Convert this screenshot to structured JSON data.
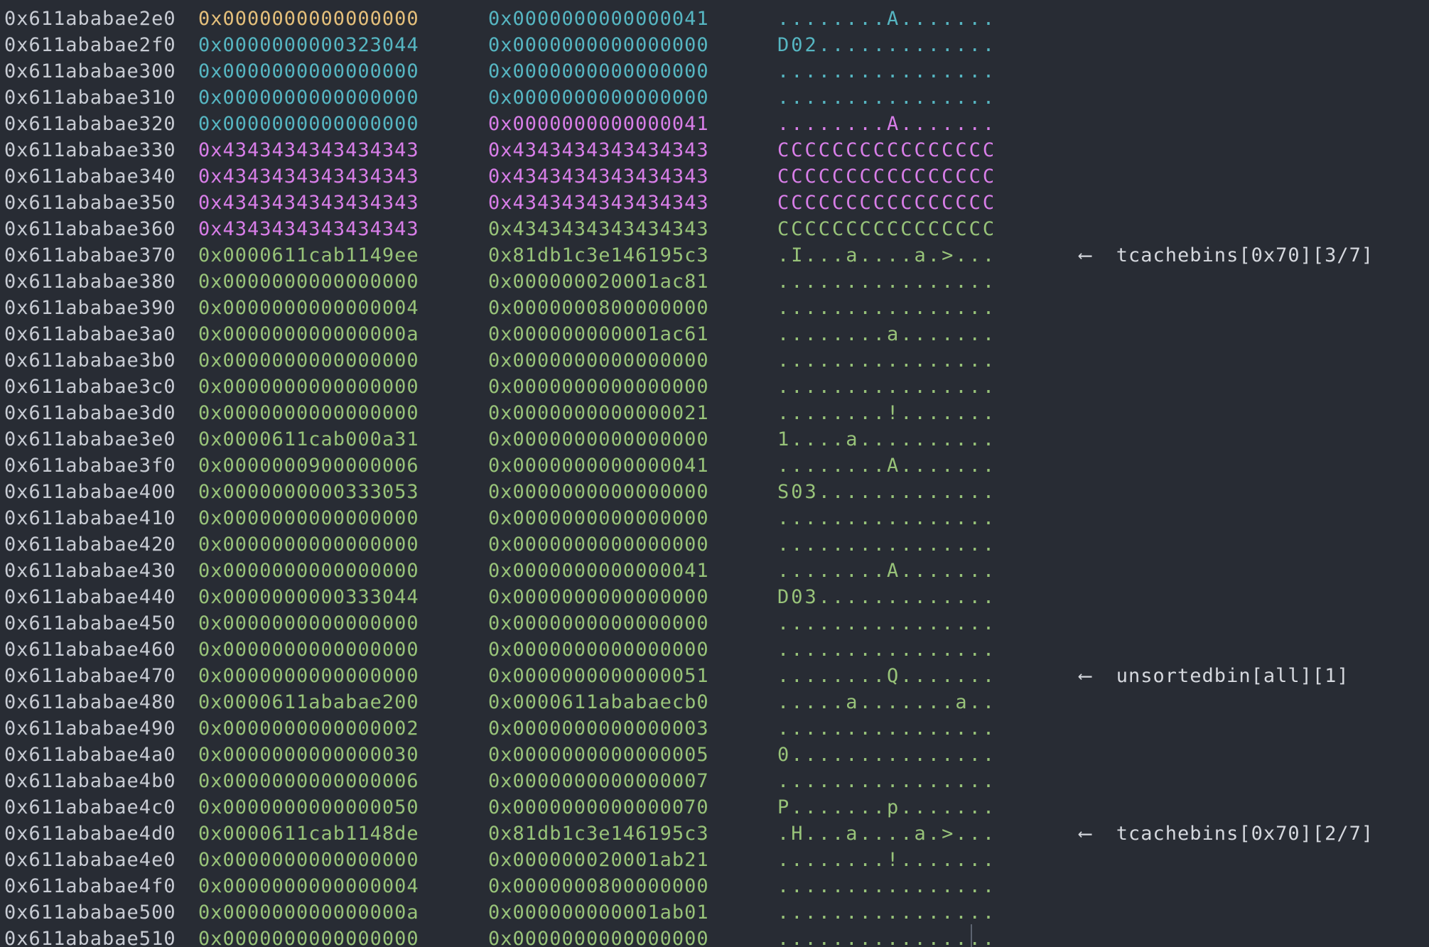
{
  "colors": {
    "background": "#282c34",
    "address": "#c8ccd4",
    "orange": "#e5c07b",
    "cyan": "#56b6c2",
    "magenta": "#d87ee8",
    "green": "#98c379",
    "annotation": "#d5d8de"
  },
  "rows": [
    {
      "addr": "0x611ababae2e0",
      "q1": "0x0000000000000000",
      "q1c": "orange",
      "q2": "0x0000000000000041",
      "q2c": "cyan",
      "ascii": "........A.......",
      "ac": "cyan",
      "note": ""
    },
    {
      "addr": "0x611ababae2f0",
      "q1": "0x0000000000323044",
      "q1c": "cyan",
      "q2": "0x0000000000000000",
      "q2c": "cyan",
      "ascii": "D02.............",
      "ac": "cyan",
      "note": ""
    },
    {
      "addr": "0x611ababae300",
      "q1": "0x0000000000000000",
      "q1c": "cyan",
      "q2": "0x0000000000000000",
      "q2c": "cyan",
      "ascii": "................",
      "ac": "cyan",
      "note": ""
    },
    {
      "addr": "0x611ababae310",
      "q1": "0x0000000000000000",
      "q1c": "cyan",
      "q2": "0x0000000000000000",
      "q2c": "cyan",
      "ascii": "................",
      "ac": "cyan",
      "note": ""
    },
    {
      "addr": "0x611ababae320",
      "q1": "0x0000000000000000",
      "q1c": "cyan",
      "q2": "0x0000000000000041",
      "q2c": "magenta",
      "ascii": "........A.......",
      "ac": "magenta",
      "note": ""
    },
    {
      "addr": "0x611ababae330",
      "q1": "0x4343434343434343",
      "q1c": "magenta",
      "q2": "0x4343434343434343",
      "q2c": "magenta",
      "ascii": "CCCCCCCCCCCCCCCC",
      "ac": "magenta",
      "note": ""
    },
    {
      "addr": "0x611ababae340",
      "q1": "0x4343434343434343",
      "q1c": "magenta",
      "q2": "0x4343434343434343",
      "q2c": "magenta",
      "ascii": "CCCCCCCCCCCCCCCC",
      "ac": "magenta",
      "note": ""
    },
    {
      "addr": "0x611ababae350",
      "q1": "0x4343434343434343",
      "q1c": "magenta",
      "q2": "0x4343434343434343",
      "q2c": "magenta",
      "ascii": "CCCCCCCCCCCCCCCC",
      "ac": "magenta",
      "note": ""
    },
    {
      "addr": "0x611ababae360",
      "q1": "0x4343434343434343",
      "q1c": "magenta",
      "q2": "0x4343434343434343",
      "q2c": "green",
      "ascii": "CCCCCCCCCCCCCCCC",
      "ac": "green",
      "note": ""
    },
    {
      "addr": "0x611ababae370",
      "q1": "0x0000611cab1149ee",
      "q1c": "green",
      "q2": "0x81db1c3e146195c3",
      "q2c": "green",
      "ascii": ".I...a....a.>...",
      "ac": "green",
      "note": "⟵  tcachebins[0x70][3/7]"
    },
    {
      "addr": "0x611ababae380",
      "q1": "0x0000000000000000",
      "q1c": "green",
      "q2": "0x000000020001ac81",
      "q2c": "green",
      "ascii": "................",
      "ac": "green",
      "note": ""
    },
    {
      "addr": "0x611ababae390",
      "q1": "0x0000000000000004",
      "q1c": "green",
      "q2": "0x0000000800000000",
      "q2c": "green",
      "ascii": "................",
      "ac": "green",
      "note": ""
    },
    {
      "addr": "0x611ababae3a0",
      "q1": "0x000000000000000a",
      "q1c": "green",
      "q2": "0x000000000001ac61",
      "q2c": "green",
      "ascii": "........a.......",
      "ac": "green",
      "note": ""
    },
    {
      "addr": "0x611ababae3b0",
      "q1": "0x0000000000000000",
      "q1c": "green",
      "q2": "0x0000000000000000",
      "q2c": "green",
      "ascii": "................",
      "ac": "green",
      "note": ""
    },
    {
      "addr": "0x611ababae3c0",
      "q1": "0x0000000000000000",
      "q1c": "green",
      "q2": "0x0000000000000000",
      "q2c": "green",
      "ascii": "................",
      "ac": "green",
      "note": ""
    },
    {
      "addr": "0x611ababae3d0",
      "q1": "0x0000000000000000",
      "q1c": "green",
      "q2": "0x0000000000000021",
      "q2c": "green",
      "ascii": "........!.......",
      "ac": "green",
      "note": ""
    },
    {
      "addr": "0x611ababae3e0",
      "q1": "0x0000611cab000a31",
      "q1c": "green",
      "q2": "0x0000000000000000",
      "q2c": "green",
      "ascii": "1....a..........",
      "ac": "green",
      "note": ""
    },
    {
      "addr": "0x611ababae3f0",
      "q1": "0x0000000900000006",
      "q1c": "green",
      "q2": "0x0000000000000041",
      "q2c": "green",
      "ascii": "........A.......",
      "ac": "green",
      "note": ""
    },
    {
      "addr": "0x611ababae400",
      "q1": "0x0000000000333053",
      "q1c": "green",
      "q2": "0x0000000000000000",
      "q2c": "green",
      "ascii": "S03.............",
      "ac": "green",
      "note": ""
    },
    {
      "addr": "0x611ababae410",
      "q1": "0x0000000000000000",
      "q1c": "green",
      "q2": "0x0000000000000000",
      "q2c": "green",
      "ascii": "................",
      "ac": "green",
      "note": ""
    },
    {
      "addr": "0x611ababae420",
      "q1": "0x0000000000000000",
      "q1c": "green",
      "q2": "0x0000000000000000",
      "q2c": "green",
      "ascii": "................",
      "ac": "green",
      "note": ""
    },
    {
      "addr": "0x611ababae430",
      "q1": "0x0000000000000000",
      "q1c": "green",
      "q2": "0x0000000000000041",
      "q2c": "green",
      "ascii": "........A.......",
      "ac": "green",
      "note": ""
    },
    {
      "addr": "0x611ababae440",
      "q1": "0x0000000000333044",
      "q1c": "green",
      "q2": "0x0000000000000000",
      "q2c": "green",
      "ascii": "D03.............",
      "ac": "green",
      "note": ""
    },
    {
      "addr": "0x611ababae450",
      "q1": "0x0000000000000000",
      "q1c": "green",
      "q2": "0x0000000000000000",
      "q2c": "green",
      "ascii": "................",
      "ac": "green",
      "note": ""
    },
    {
      "addr": "0x611ababae460",
      "q1": "0x0000000000000000",
      "q1c": "green",
      "q2": "0x0000000000000000",
      "q2c": "green",
      "ascii": "................",
      "ac": "green",
      "note": ""
    },
    {
      "addr": "0x611ababae470",
      "q1": "0x0000000000000000",
      "q1c": "green",
      "q2": "0x0000000000000051",
      "q2c": "green",
      "ascii": "........Q.......",
      "ac": "green",
      "note": "⟵  unsortedbin[all][1]"
    },
    {
      "addr": "0x611ababae480",
      "q1": "0x0000611ababae200",
      "q1c": "green",
      "q2": "0x0000611ababaecb0",
      "q2c": "green",
      "ascii": ".....a.......a..",
      "ac": "green",
      "note": ""
    },
    {
      "addr": "0x611ababae490",
      "q1": "0x0000000000000002",
      "q1c": "green",
      "q2": "0x0000000000000003",
      "q2c": "green",
      "ascii": "................",
      "ac": "green",
      "note": ""
    },
    {
      "addr": "0x611ababae4a0",
      "q1": "0x0000000000000030",
      "q1c": "green",
      "q2": "0x0000000000000005",
      "q2c": "green",
      "ascii": "0...............",
      "ac": "green",
      "note": ""
    },
    {
      "addr": "0x611ababae4b0",
      "q1": "0x0000000000000006",
      "q1c": "green",
      "q2": "0x0000000000000007",
      "q2c": "green",
      "ascii": "................",
      "ac": "green",
      "note": ""
    },
    {
      "addr": "0x611ababae4c0",
      "q1": "0x0000000000000050",
      "q1c": "green",
      "q2": "0x0000000000000070",
      "q2c": "green",
      "ascii": "P.......p.......",
      "ac": "green",
      "note": ""
    },
    {
      "addr": "0x611ababae4d0",
      "q1": "0x0000611cab1148de",
      "q1c": "green",
      "q2": "0x81db1c3e146195c3",
      "q2c": "green",
      "ascii": ".H...a....a.>...",
      "ac": "green",
      "note": "⟵  tcachebins[0x70][2/7]"
    },
    {
      "addr": "0x611ababae4e0",
      "q1": "0x0000000000000000",
      "q1c": "green",
      "q2": "0x000000020001ab21",
      "q2c": "green",
      "ascii": "........!.......",
      "ac": "green",
      "note": ""
    },
    {
      "addr": "0x611ababae4f0",
      "q1": "0x0000000000000004",
      "q1c": "green",
      "q2": "0x0000000800000000",
      "q2c": "green",
      "ascii": "................",
      "ac": "green",
      "note": ""
    },
    {
      "addr": "0x611ababae500",
      "q1": "0x000000000000000a",
      "q1c": "green",
      "q2": "0x000000000001ab01",
      "q2c": "green",
      "ascii": "................",
      "ac": "green",
      "note": ""
    },
    {
      "addr": "0x611ababae510",
      "q1": "0x0000000000000000",
      "q1c": "green",
      "q2": "0x0000000000000000",
      "q2c": "green",
      "ascii": "................",
      "ac": "green",
      "note": ""
    }
  ]
}
